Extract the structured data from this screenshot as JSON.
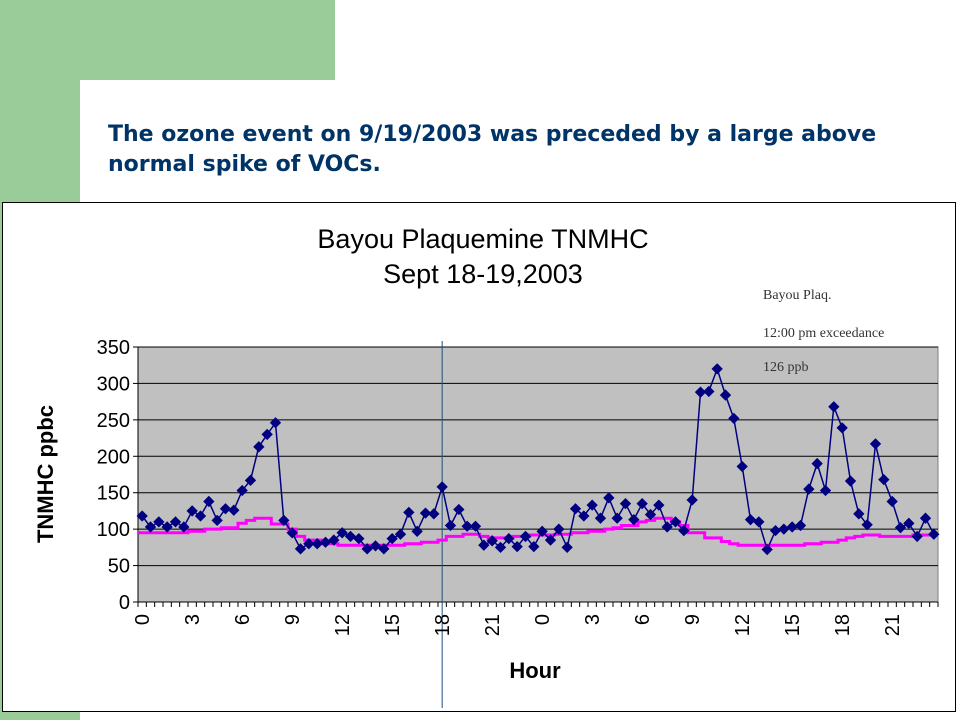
{
  "slide": {
    "title": "The ozone event on 9/19/2003 was preceded by a large above normal spike of VOCs."
  },
  "colors": {
    "accent_green": "#99cc99",
    "title_blue": "#003366",
    "series_tnmhc": "#000080",
    "series_normal": "#ff00ff",
    "plot_bg": "#c0c0c0",
    "exceedance_line": "#1f4e79"
  },
  "chart_data": {
    "type": "line",
    "title": "Bayou Plaquemine TNMHC",
    "subtitle": "Sept 18-19,2003",
    "xlabel": "Hour",
    "ylabel": "TNMHC ppbc",
    "ylim": [
      0,
      350
    ],
    "yticks": [
      0,
      50,
      100,
      150,
      200,
      250,
      300,
      350
    ],
    "xticks": [
      "0",
      "3",
      "6",
      "9",
      "12",
      "15",
      "18",
      "21",
      "0",
      "3",
      "6",
      "9",
      "12",
      "15",
      "18",
      "21"
    ],
    "grid": true,
    "annotation": {
      "lines": [
        "Bayou Plaq.",
        "12:00 pm exceedance",
        "126 ppb"
      ],
      "x": 36
    },
    "series": [
      {
        "values": [
          118,
          103,
          110,
          103,
          110,
          103,
          125,
          118,
          138,
          112,
          128,
          126,
          153,
          167,
          213,
          230,
          246,
          112,
          95,
          73,
          80,
          80,
          82,
          85,
          95,
          90,
          87,
          73,
          77,
          73,
          87,
          93,
          123,
          97,
          122,
          121,
          158,
          105,
          127,
          104,
          104,
          78,
          84,
          75,
          87,
          76,
          90,
          76,
          97,
          85,
          100,
          75,
          128,
          118,
          133,
          115,
          143,
          115,
          135,
          113,
          135,
          120,
          133,
          103,
          110,
          98,
          140,
          288,
          289,
          320,
          284,
          252,
          186,
          113,
          110,
          72,
          98,
          100,
          103,
          105,
          155,
          190,
          153,
          268,
          239,
          166,
          121,
          106,
          217,
          168,
          138,
          102,
          108,
          90,
          115,
          93
        ]
      },
      {
        "values": [
          95,
          95,
          95,
          95,
          95,
          95,
          97,
          97,
          100,
          100,
          102,
          102,
          108,
          112,
          115,
          115,
          107,
          107,
          100,
          90,
          85,
          85,
          80,
          80,
          78,
          78,
          78,
          78,
          78,
          78,
          78,
          78,
          80,
          80,
          82,
          82,
          85,
          90,
          90,
          93,
          93,
          90,
          88,
          88,
          88,
          90,
          90,
          92,
          92,
          92,
          93,
          93,
          95,
          95,
          97,
          97,
          100,
          102,
          105,
          105,
          110,
          112,
          115,
          115,
          110,
          105,
          95,
          95,
          88,
          88,
          83,
          80,
          78,
          78,
          78,
          78,
          78,
          78,
          78,
          78,
          80,
          80,
          82,
          82,
          85,
          88,
          90,
          92,
          92,
          90,
          90,
          90,
          90,
          92,
          92,
          92
        ]
      }
    ]
  }
}
